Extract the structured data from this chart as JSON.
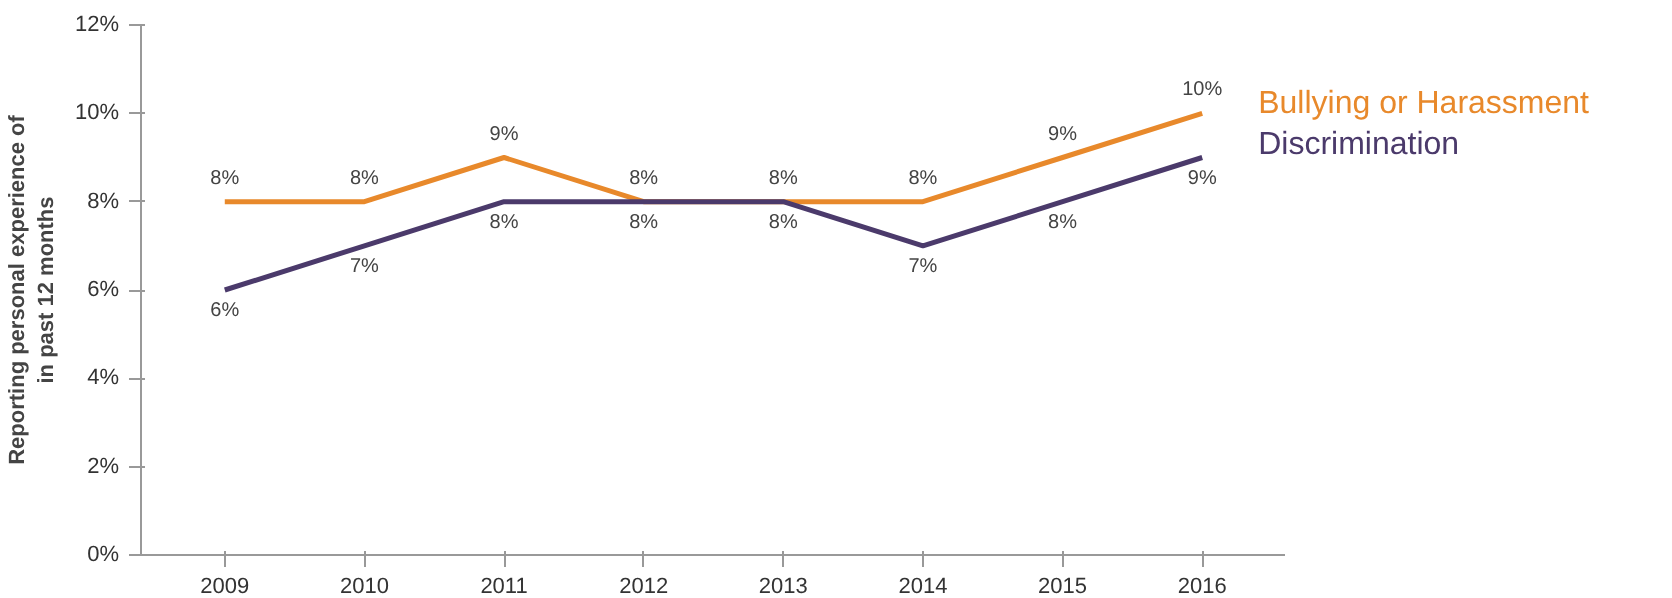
{
  "chart_data": {
    "type": "line",
    "categories": [
      "2009",
      "2010",
      "2011",
      "2012",
      "2013",
      "2014",
      "2015",
      "2016"
    ],
    "ylabel": "Reporting personal experience of\nin past 12 months",
    "ylim": [
      0,
      12
    ],
    "yticks": [
      {
        "value": 0,
        "label": "0%"
      },
      {
        "value": 2,
        "label": "2%"
      },
      {
        "value": 4,
        "label": "4%"
      },
      {
        "value": 6,
        "label": "6%"
      },
      {
        "value": 8,
        "label": "8%"
      },
      {
        "value": 10,
        "label": "10%"
      },
      {
        "value": 12,
        "label": "12%"
      }
    ],
    "grid": false,
    "marker": "none",
    "line_style": "solid",
    "series": [
      {
        "name": "Bullying or Harassment",
        "color": "#e8892b",
        "values": [
          8,
          8,
          9,
          8,
          8,
          8,
          9,
          10
        ],
        "value_labels": [
          "8%",
          "8%",
          "9%",
          "8%",
          "8%",
          "8%",
          "9%",
          "10%"
        ]
      },
      {
        "name": "Discrimination",
        "color": "#4b3a6b",
        "values": [
          6,
          7,
          8,
          8,
          8,
          7,
          8,
          9
        ],
        "value_labels": [
          "6%",
          "7%",
          "8%",
          "8%",
          "8%",
          "7%",
          "8%",
          "9%"
        ]
      }
    ]
  }
}
